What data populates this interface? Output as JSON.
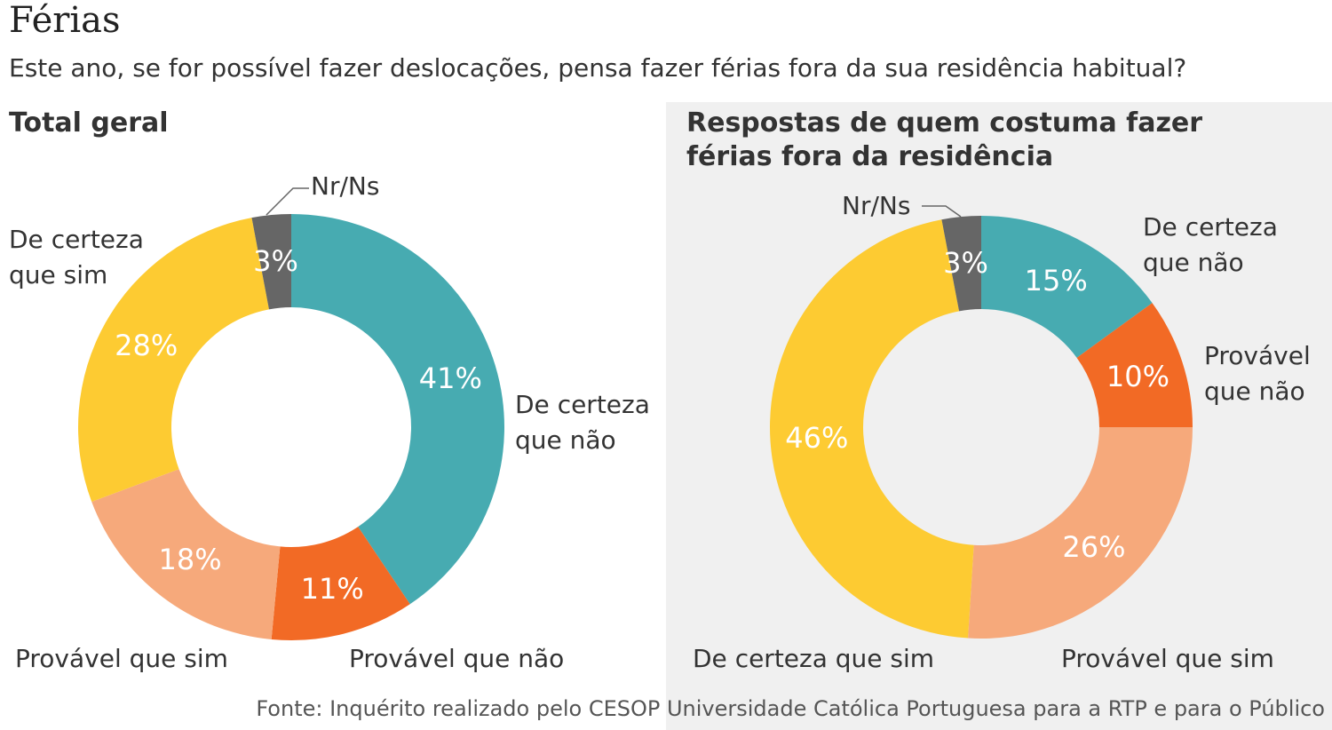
{
  "title": "Férias",
  "subtitle": "Este ano, se for possível fazer deslocações, pensa fazer férias fora da sua residência habitual?",
  "source": "Fonte: Inquérito realizado pelo CESOP Universidade Católica Portuguesa para a RTP e para o Público",
  "chart_data": [
    {
      "type": "donut",
      "title": "Total geral",
      "categories": [
        "De certeza que não",
        "Provável que não",
        "Provável que sim",
        "De certeza que sim",
        "Nr/Ns"
      ],
      "values": [
        41,
        11,
        18,
        28,
        3
      ],
      "value_labels": [
        "41%",
        "11%",
        "18%",
        "28%",
        "3%"
      ],
      "colors": [
        "#47abb1",
        "#f26a25",
        "#f6a97b",
        "#fdcb32",
        "#666666"
      ]
    },
    {
      "type": "donut",
      "title": "Respostas de quem costuma fazer férias fora da residência",
      "categories": [
        "De certeza que não",
        "Provável que não",
        "Provável que sim",
        "De certeza que sim",
        "Nr/Ns"
      ],
      "values": [
        15,
        10,
        26,
        46,
        3
      ],
      "value_labels": [
        "15%",
        "10%",
        "26%",
        "46%",
        "3%"
      ],
      "colors": [
        "#47abb1",
        "#f26a25",
        "#f6a97b",
        "#fdcb32",
        "#666666"
      ]
    }
  ]
}
